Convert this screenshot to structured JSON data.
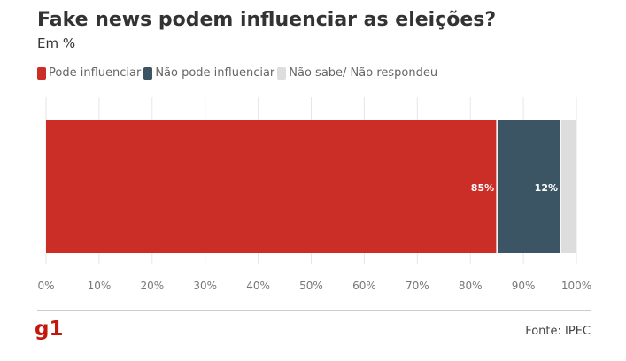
{
  "title": "Fake news podem influenciar as eleições?",
  "subtitle": "Em %",
  "source": "Fonte: IPEC",
  "logo_text": "g1",
  "chart_data": {
    "type": "bar",
    "orientation": "horizontal",
    "stacked": true,
    "categories": [
      ""
    ],
    "series": [
      {
        "name": "Pode influenciar",
        "values": [
          85
        ],
        "color": "#cb2d27",
        "label": "85%"
      },
      {
        "name": "Não pode influenciar",
        "values": [
          12
        ],
        "color": "#3c5564",
        "label": "12%"
      },
      {
        "name": "Não sabe/ Não respondeu",
        "values": [
          3
        ],
        "color": "#dddddd",
        "label": ""
      }
    ],
    "xlim": [
      0,
      100
    ],
    "xticks": [
      "0%",
      "10%",
      "20%",
      "30%",
      "40%",
      "50%",
      "60%",
      "70%",
      "80%",
      "90%",
      "100%"
    ],
    "grid": true,
    "legend": "top-left"
  }
}
